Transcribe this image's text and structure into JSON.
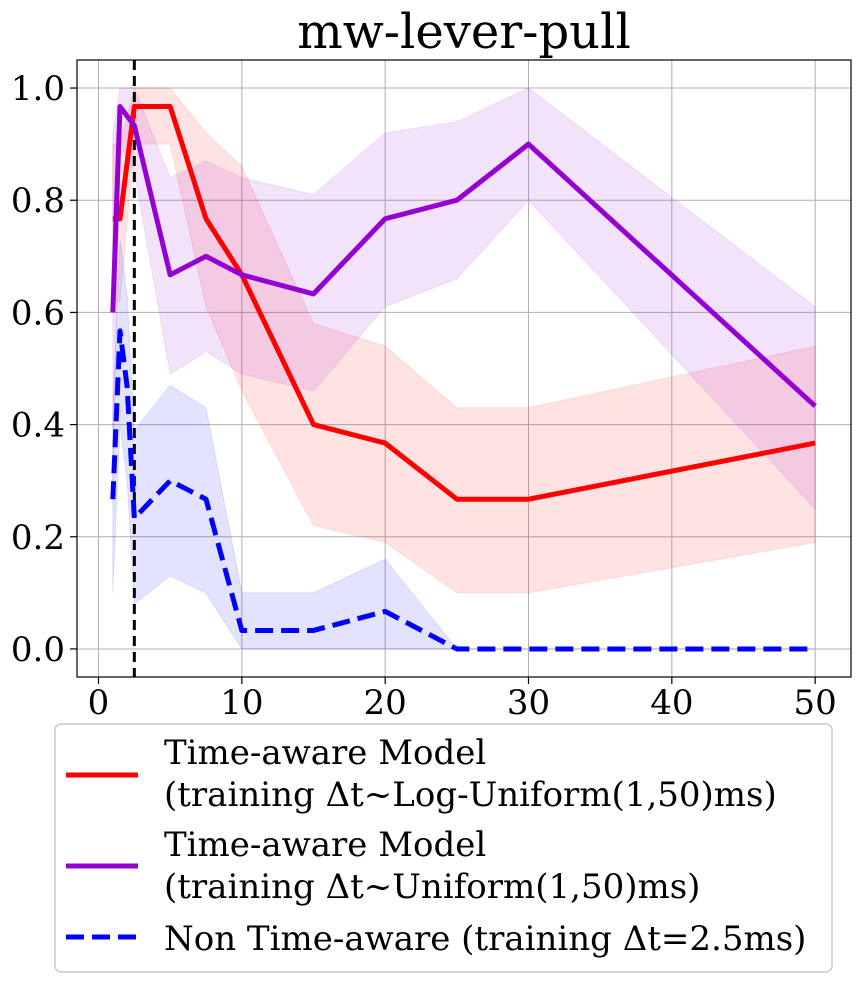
{
  "chart_data": {
    "type": "line",
    "title": "mw-lever-pull",
    "xlabel": "",
    "ylabel": "",
    "xlim": [
      -1.5,
      52.5
    ],
    "ylim": [
      -0.05,
      1.05
    ],
    "grid": true,
    "x_ticks": [
      0,
      10,
      20,
      30,
      40,
      50
    ],
    "x_tick_labels": [
      "0",
      "10",
      "20",
      "30",
      "40",
      "50"
    ],
    "y_ticks": [
      0.0,
      0.2,
      0.4,
      0.6,
      0.8,
      1.0
    ],
    "y_tick_labels": [
      "0.0",
      "0.2",
      "0.4",
      "0.6",
      "0.8",
      "1.0"
    ],
    "vline": {
      "x": 2.5,
      "style": "dashed",
      "color": "#000000"
    },
    "legend_position": "bottom",
    "series": [
      {
        "name": "Time-aware Model (training Δt~Log-Uniform(1,50)ms)",
        "color": "#ff0000",
        "dash": "solid",
        "x": [
          1,
          1.5,
          2.5,
          5,
          7.5,
          10,
          15,
          20,
          25,
          30,
          50
        ],
        "y": [
          0.767,
          0.767,
          0.967,
          0.967,
          0.767,
          0.667,
          0.4,
          0.367,
          0.267,
          0.267,
          0.367
        ],
        "lower": [
          0.62,
          0.62,
          0.9,
          0.9,
          0.61,
          0.46,
          0.22,
          0.19,
          0.1,
          0.1,
          0.19
        ],
        "upper": [
          0.9,
          0.9,
          1.0,
          1.0,
          0.92,
          0.86,
          0.58,
          0.54,
          0.43,
          0.43,
          0.54
        ]
      },
      {
        "name": "Time-aware Model (training Δt~Uniform(1,50)ms)",
        "color": "#9400d3",
        "dash": "solid",
        "x": [
          1,
          1.5,
          2.5,
          5,
          7.5,
          10,
          15,
          20,
          25,
          30,
          50
        ],
        "y": [
          0.6,
          0.967,
          0.933,
          0.667,
          0.7,
          0.667,
          0.633,
          0.767,
          0.8,
          0.9,
          0.433
        ],
        "lower": [
          0.27,
          0.9,
          0.85,
          0.49,
          0.53,
          0.49,
          0.46,
          0.61,
          0.66,
          0.8,
          0.25
        ],
        "upper": [
          0.92,
          1.0,
          1.0,
          0.84,
          0.87,
          0.84,
          0.81,
          0.92,
          0.94,
          1.0,
          0.61
        ]
      },
      {
        "name": "Non Time-aware (training Δt=2.5ms)",
        "color": "#0000ff",
        "dash": "dashed",
        "x": [
          1,
          1.5,
          2,
          2.5,
          5,
          7.5,
          10,
          15,
          20,
          25,
          30,
          50
        ],
        "y": [
          0.267,
          0.567,
          0.467,
          0.233,
          0.3,
          0.267,
          0.033,
          0.033,
          0.067,
          0.0,
          0.0,
          0.0
        ],
        "lower": [
          0.1,
          0.4,
          0.3,
          0.08,
          0.13,
          0.1,
          0.0,
          0.0,
          0.0,
          0.0,
          0.0,
          0.0
        ],
        "upper": [
          0.43,
          0.73,
          0.63,
          0.39,
          0.47,
          0.43,
          0.1,
          0.1,
          0.16,
          0.0,
          0.0,
          0.0
        ]
      }
    ],
    "legend": [
      {
        "line1": "Time-aware Model",
        "line2": "(training Δt~Log-Uniform(1,50)ms)",
        "color": "#ff0000",
        "dash": "solid"
      },
      {
        "line1": "Time-aware Model",
        "line2": "(training Δt~Uniform(1,50)ms)",
        "color": "#9400d3",
        "dash": "solid"
      },
      {
        "line1": "Non Time-aware (training Δt=2.5ms)",
        "line2": "",
        "color": "#0000ff",
        "dash": "dashed"
      }
    ]
  }
}
